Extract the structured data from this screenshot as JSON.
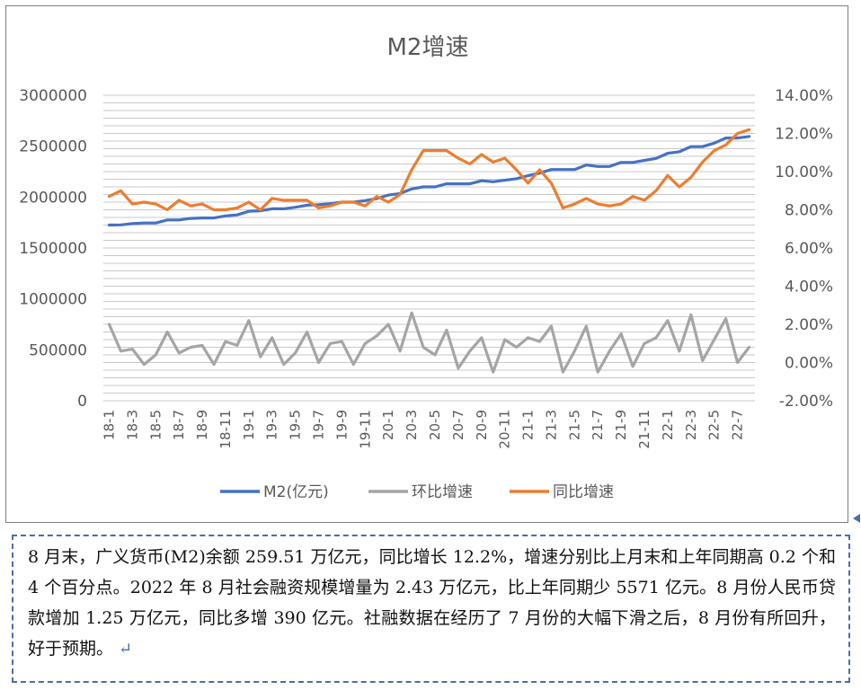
{
  "chart_data": {
    "type": "line",
    "title": "M2增速",
    "x": [
      "18-1",
      "18-2",
      "18-3",
      "18-4",
      "18-5",
      "18-6",
      "18-7",
      "18-8",
      "18-9",
      "18-10",
      "18-11",
      "18-12",
      "19-1",
      "19-2",
      "19-3",
      "19-4",
      "19-5",
      "19-6",
      "19-7",
      "19-8",
      "19-9",
      "19-10",
      "19-11",
      "19-12",
      "20-1",
      "20-2",
      "20-3",
      "20-4",
      "20-5",
      "20-6",
      "20-7",
      "20-8",
      "20-9",
      "20-10",
      "20-11",
      "20-12",
      "21-1",
      "21-2",
      "21-3",
      "21-4",
      "21-5",
      "21-6",
      "21-7",
      "21-8",
      "21-9",
      "21-10",
      "21-11",
      "21-12",
      "22-1",
      "22-2",
      "22-3",
      "22-4",
      "22-5",
      "22-6",
      "22-7",
      "22-8"
    ],
    "x_tick_labels": [
      "18-1",
      "18-3",
      "18-5",
      "18-7",
      "18-9",
      "18-11",
      "19-1",
      "19-3",
      "19-5",
      "19-7",
      "19-9",
      "19-11",
      "20-1",
      "20-3",
      "20-5",
      "20-7",
      "20-9",
      "20-11",
      "21-1",
      "21-3",
      "21-5",
      "21-7",
      "21-9",
      "21-11",
      "22-1",
      "22-3",
      "22-5",
      "22-7"
    ],
    "y_left": {
      "ylim": [
        0,
        3000000
      ],
      "ticks": [
        "0",
        "500000",
        "1000000",
        "1500000",
        "2000000",
        "2500000",
        "3000000"
      ]
    },
    "y_right": {
      "ylim": [
        -0.02,
        0.14
      ],
      "ticks": [
        "-2.00%",
        "0.00%",
        "2.00%",
        "4.00%",
        "6.00%",
        "8.00%",
        "10.00%",
        "12.00%",
        "14.00%"
      ]
    },
    "grid": true,
    "legend_position": "bottom",
    "series": [
      {
        "name": "M2(亿元)",
        "axis": "left",
        "color": "#4472c4",
        "values": [
          1725000,
          1727000,
          1740000,
          1745000,
          1745000,
          1775000,
          1775000,
          1790000,
          1795000,
          1795000,
          1815000,
          1825000,
          1860000,
          1865000,
          1885000,
          1885000,
          1900000,
          1920000,
          1925000,
          1935000,
          1950000,
          1950000,
          1965000,
          1985000,
          2020000,
          2035000,
          2080000,
          2100000,
          2100000,
          2130000,
          2130000,
          2130000,
          2160000,
          2150000,
          2165000,
          2180000,
          2210000,
          2235000,
          2270000,
          2270000,
          2270000,
          2315000,
          2300000,
          2300000,
          2340000,
          2340000,
          2360000,
          2380000,
          2430000,
          2445000,
          2495000,
          2495000,
          2530000,
          2580000,
          2580000,
          2595000
        ]
      },
      {
        "name": "环比增速",
        "axis": "right",
        "color": "#a5a5a5",
        "values": [
          0.02,
          0.006,
          0.007,
          -0.001,
          0.004,
          0.016,
          0.005,
          0.008,
          0.009,
          -0.001,
          0.011,
          0.009,
          0.022,
          0.003,
          0.013,
          -0.001,
          0.005,
          0.016,
          0.0,
          0.01,
          0.011,
          -0.001,
          0.01,
          0.014,
          0.02,
          0.006,
          0.026,
          0.008,
          0.004,
          0.017,
          -0.003,
          0.006,
          0.013,
          -0.005,
          0.012,
          0.008,
          0.013,
          0.011,
          0.019,
          -0.005,
          0.006,
          0.019,
          -0.005,
          0.006,
          0.015,
          -0.002,
          0.01,
          0.013,
          0.022,
          0.006,
          0.025,
          0.001,
          0.012,
          0.023,
          0.0,
          0.008
        ]
      },
      {
        "name": "同比增速",
        "axis": "right",
        "color": "#ed7d31",
        "values": [
          0.087,
          0.09,
          0.083,
          0.084,
          0.083,
          0.08,
          0.085,
          0.082,
          0.083,
          0.08,
          0.08,
          0.081,
          0.084,
          0.08,
          0.086,
          0.085,
          0.085,
          0.085,
          0.081,
          0.082,
          0.084,
          0.084,
          0.082,
          0.087,
          0.084,
          0.088,
          0.101,
          0.111,
          0.111,
          0.111,
          0.107,
          0.104,
          0.109,
          0.105,
          0.107,
          0.101,
          0.094,
          0.101,
          0.094,
          0.081,
          0.083,
          0.086,
          0.083,
          0.082,
          0.083,
          0.087,
          0.085,
          0.09,
          0.098,
          0.092,
          0.097,
          0.105,
          0.111,
          0.114,
          0.12,
          0.122
        ]
      }
    ]
  },
  "text_box": {
    "paragraph": "8 月末，广义货币(M2)余额 259.51 万亿元，同比增长 12.2%，增速分别比上月末和上年同期高 0.2 个和 4 个百分点。2022 年 8 月社会融资规模增量为 2.43 万亿元，比上年同期少 5571 亿元。8 月份人民币贷款增加 1.25 万亿元，同比多增 390 亿元。社融数据在经历了 7 月份的大幅下滑之后，8 月份有所回升，好于预期。",
    "return_mark": "↵"
  }
}
